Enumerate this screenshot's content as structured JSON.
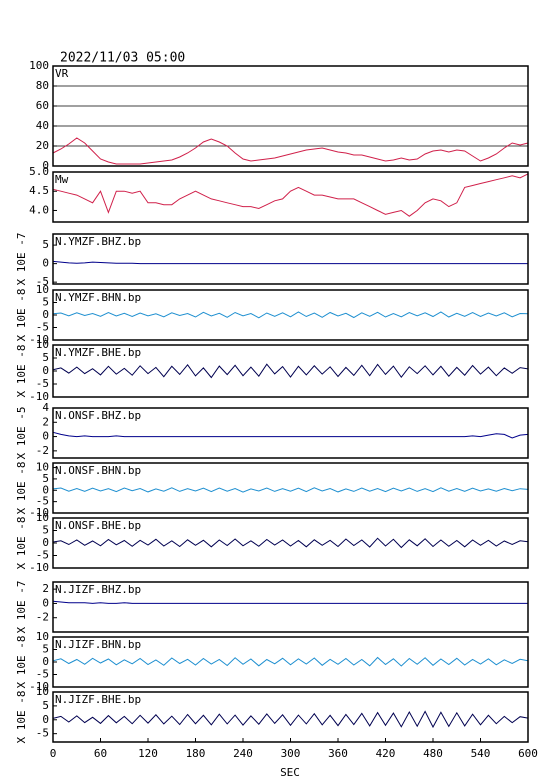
{
  "chart_data": {
    "type": "line",
    "title": "2022/11/03 05:00",
    "xlabel": "SEC",
    "xlim": [
      0,
      600
    ],
    "xticks": [
      0,
      60,
      120,
      180,
      240,
      300,
      360,
      420,
      480,
      540,
      600
    ],
    "x": [
      0,
      10,
      20,
      30,
      40,
      50,
      60,
      70,
      80,
      90,
      100,
      110,
      120,
      130,
      140,
      150,
      160,
      170,
      180,
      190,
      200,
      210,
      220,
      230,
      240,
      250,
      260,
      270,
      280,
      290,
      300,
      310,
      320,
      330,
      340,
      350,
      360,
      370,
      380,
      390,
      400,
      410,
      420,
      430,
      440,
      450,
      460,
      470,
      480,
      490,
      500,
      510,
      520,
      530,
      540,
      550,
      560,
      570,
      580,
      590,
      600
    ],
    "panels": [
      {
        "name": "VR",
        "color": "#d0204a",
        "grid": true,
        "ylim": [
          0,
          100
        ],
        "yticks": [
          0,
          20,
          40,
          60,
          80,
          100
        ],
        "values": [
          13,
          17,
          22,
          28,
          23,
          15,
          7,
          4,
          2,
          2,
          2,
          2,
          3,
          4,
          5,
          6,
          9,
          13,
          18,
          24,
          27,
          24,
          20,
          13,
          7,
          5,
          6,
          7,
          8,
          10,
          12,
          14,
          16,
          17,
          18,
          16,
          14,
          13,
          11,
          11,
          9,
          7,
          5,
          6,
          8,
          6,
          7,
          12,
          15,
          16,
          14,
          16,
          15,
          10,
          5,
          8,
          12,
          18,
          23,
          21,
          23
        ]
      },
      {
        "name": "Mw",
        "color": "#d0204a",
        "ylim": [
          3.7,
          5.0
        ],
        "yticks": [
          {
            "value": 4.0,
            "label": "4.0"
          },
          4.5,
          {
            "value": 5.0,
            "label": "5.0"
          }
        ],
        "values": [
          4.55,
          4.5,
          4.45,
          4.4,
          4.3,
          4.2,
          4.5,
          3.95,
          4.5,
          4.5,
          4.45,
          4.5,
          4.2,
          4.2,
          4.15,
          4.15,
          4.3,
          4.4,
          4.5,
          4.4,
          4.3,
          4.25,
          4.2,
          4.15,
          4.1,
          4.1,
          4.05,
          4.15,
          4.25,
          4.3,
          4.5,
          4.6,
          4.5,
          4.4,
          4.4,
          4.35,
          4.3,
          4.3,
          4.3,
          4.2,
          4.1,
          4.0,
          3.9,
          3.95,
          4.0,
          3.85,
          4.0,
          4.2,
          4.3,
          4.25,
          4.1,
          4.2,
          4.6,
          4.65,
          4.7,
          4.75,
          4.8,
          4.85,
          4.9,
          4.85,
          4.95
        ]
      },
      {
        "name": "N.YMZF.BHZ.bp",
        "ylabel": "X 10E -7",
        "color": "#00008b",
        "ylim": [
          -5.5,
          8
        ],
        "yticks": [
          -5,
          0,
          5
        ],
        "values": [
          0.6,
          0.4,
          0.2,
          0.1,
          0.2,
          0.4,
          0.3,
          0.2,
          0.1,
          0.1,
          0.1,
          0,
          0,
          0,
          0,
          0,
          0,
          0,
          0,
          0,
          0,
          0,
          0,
          0,
          0,
          0,
          0,
          0,
          0,
          0,
          0,
          0,
          0,
          0,
          0,
          0,
          0,
          0,
          0,
          0,
          0,
          0,
          0,
          0,
          0,
          0,
          0,
          0,
          0,
          0,
          0,
          0,
          0,
          0,
          0,
          0,
          0,
          0,
          0,
          0,
          0
        ]
      },
      {
        "name": "N.YMZF.BHN.bp",
        "ylabel": "X 10E -8",
        "color": "#1e8fd0",
        "ylim": [
          -10,
          10
        ],
        "yticks": [
          -10,
          -5,
          0,
          5,
          10
        ],
        "values": [
          0.5,
          0.8,
          -0.3,
          0.9,
          -0.2,
          0.6,
          -0.5,
          1.0,
          -0.4,
          0.7,
          -0.6,
          0.8,
          -0.3,
          0.5,
          -0.7,
          0.9,
          -0.2,
          0.6,
          -0.8,
          1.1,
          -0.4,
          0.7,
          -0.9,
          1.0,
          -0.3,
          0.6,
          -1.1,
          0.8,
          -0.5,
          0.9,
          -0.7,
          1.2,
          -0.6,
          0.8,
          -0.9,
          1.0,
          -0.4,
          0.7,
          -1.0,
          0.9,
          -0.5,
          1.1,
          -0.8,
          0.6,
          -0.7,
          1.0,
          -0.3,
          0.9,
          -0.6,
          1.2,
          -0.8,
          0.7,
          -0.5,
          1.0,
          -0.6,
          0.8,
          -0.4,
          0.9,
          -0.7,
          0.6,
          0.5
        ]
      },
      {
        "name": "N.YMZF.BHE.bp",
        "ylabel": "X 10E -8",
        "color": "#000050",
        "ylim": [
          -10,
          10
        ],
        "yticks": [
          -10,
          -5,
          0,
          5,
          10
        ],
        "values": [
          0.5,
          1.2,
          -0.8,
          1.5,
          -1.0,
          0.9,
          -1.5,
          1.8,
          -1.2,
          1.0,
          -1.6,
          2.0,
          -1.0,
          1.4,
          -2.2,
          1.8,
          -1.3,
          2.4,
          -1.9,
          1.2,
          -2.5,
          1.9,
          -1.4,
          2.2,
          -1.8,
          1.5,
          -2.0,
          2.6,
          -1.1,
          1.7,
          -2.3,
          1.8,
          -1.5,
          2.0,
          -1.2,
          1.6,
          -2.1,
          1.4,
          -1.7,
          2.2,
          -1.8,
          2.5,
          -1.3,
          1.9,
          -2.4,
          1.6,
          -1.0,
          2.0,
          -1.5,
          1.8,
          -2.0,
          1.4,
          -1.6,
          2.1,
          -1.2,
          1.5,
          -1.8,
          1.2,
          -0.9,
          1.3,
          0.8
        ]
      },
      {
        "name": "N.ONSF.BHZ.bp",
        "ylabel": "X 10E -5",
        "color": "#00008b",
        "ylim": [
          -3,
          4
        ],
        "yticks": [
          -2,
          0,
          2,
          4
        ],
        "values": [
          0.6,
          0.3,
          0.1,
          0,
          0.1,
          0,
          0,
          0,
          0.1,
          0,
          0,
          0,
          0,
          0,
          0,
          0,
          0,
          0,
          0,
          0,
          0,
          0,
          0,
          0,
          0,
          0,
          0,
          0,
          0,
          0,
          0,
          0,
          0,
          0,
          0,
          0,
          0,
          0,
          0,
          0,
          0,
          0,
          0,
          0,
          0,
          0,
          0,
          0,
          0,
          0,
          0,
          0,
          0,
          0.1,
          0,
          0.2,
          0.4,
          0.3,
          -0.2,
          0.2,
          0.3
        ]
      },
      {
        "name": "N.ONSF.BHN.bp",
        "ylabel": "X 10E -8",
        "color": "#1e8fd0",
        "ylim": [
          -10,
          12
        ],
        "yticks": [
          -10,
          -5,
          0,
          5,
          10
        ],
        "values": [
          0.6,
          1.0,
          -0.4,
          0.8,
          -0.5,
          0.9,
          -0.3,
          0.7,
          -0.6,
          1.0,
          -0.2,
          0.8,
          -0.7,
          0.6,
          -0.4,
          1.1,
          -0.5,
          0.7,
          -0.3,
          0.9,
          -0.6,
          1.0,
          -0.4,
          0.8,
          -0.8,
          0.6,
          -0.3,
          1.0,
          -0.5,
          0.7,
          -0.4,
          0.9,
          -0.6,
          1.1,
          -0.3,
          0.8,
          -0.7,
          0.6,
          -0.5,
          1.0,
          -0.4,
          0.8,
          -0.6,
          0.9,
          -0.3,
          1.0,
          -0.5,
          0.7,
          -0.6,
          1.1,
          -0.4,
          0.8,
          -0.5,
          0.9,
          -0.3,
          0.6,
          -0.4,
          0.8,
          -0.2,
          0.7,
          0.4
        ]
      },
      {
        "name": "N.ONSF.BHE.bp",
        "ylabel": "X 10E -8",
        "color": "#000050",
        "ylim": [
          -10,
          10
        ],
        "yticks": [
          -10,
          -5,
          0,
          5,
          10
        ],
        "values": [
          0.4,
          0.9,
          -0.6,
          1.2,
          -0.9,
          0.8,
          -1.1,
          1.4,
          -0.7,
          1.0,
          -1.3,
          1.1,
          -0.8,
          1.5,
          -1.2,
          0.9,
          -1.4,
          1.3,
          -0.9,
          1.1,
          -1.5,
          1.2,
          -1.0,
          1.6,
          -1.1,
          0.9,
          -1.3,
          1.4,
          -0.8,
          1.2,
          -1.2,
          1.0,
          -1.5,
          1.3,
          -0.9,
          1.1,
          -1.4,
          1.6,
          -1.0,
          1.2,
          -1.6,
          1.9,
          -1.2,
          1.5,
          -1.8,
          1.3,
          -1.1,
          1.7,
          -1.4,
          1.2,
          -1.3,
          1.0,
          -1.5,
          1.2,
          -0.9,
          1.1,
          -1.2,
          0.8,
          -0.6,
          0.9,
          0.5
        ]
      },
      {
        "name": "N.JIZF.BHZ.bp",
        "ylabel": "X 10E -7",
        "color": "#00008b",
        "ylim": [
          -4,
          3
        ],
        "yticks": [
          -2,
          0,
          2
        ],
        "values": [
          0.3,
          0.2,
          0.1,
          0.1,
          0.1,
          0,
          0.1,
          0,
          0,
          0.1,
          0,
          0,
          0,
          0,
          0,
          0,
          0,
          0,
          0,
          0,
          0,
          0,
          0,
          0,
          0,
          0,
          0,
          0,
          0,
          0,
          0,
          0,
          0,
          0,
          0,
          0,
          0,
          0,
          0,
          0,
          0,
          0,
          0,
          0,
          0,
          0,
          0,
          0,
          0,
          0,
          0,
          0,
          0,
          0,
          0,
          0,
          0,
          0,
          0,
          0,
          0
        ]
      },
      {
        "name": "N.JIZF.BHN.bp",
        "ylabel": "X 10E -8",
        "color": "#1e8fd0",
        "ylim": [
          -10,
          10
        ],
        "yticks": [
          -10,
          -5,
          0,
          5,
          10
        ],
        "values": [
          0.5,
          1.3,
          -0.6,
          1.0,
          -0.9,
          1.5,
          -0.4,
          1.2,
          -1.1,
          0.9,
          -0.7,
          1.4,
          -1.0,
          0.8,
          -1.3,
          1.6,
          -0.6,
          1.1,
          -1.2,
          1.4,
          -0.8,
          1.0,
          -1.4,
          1.7,
          -0.9,
          1.2,
          -1.5,
          1.0,
          -0.7,
          1.5,
          -1.1,
          1.3,
          -0.8,
          1.6,
          -1.3,
          1.1,
          -0.9,
          1.4,
          -1.2,
          1.0,
          -1.5,
          1.8,
          -1.0,
          1.3,
          -1.6,
          1.4,
          -0.9,
          1.7,
          -1.3,
          1.2,
          -1.0,
          1.5,
          -1.2,
          1.0,
          -0.8,
          1.3,
          -1.1,
          0.9,
          -0.6,
          1.1,
          0.5
        ]
      },
      {
        "name": "N.JIZF.BHE.bp",
        "ylabel": "X 10E -8",
        "color": "#000050",
        "ylim": [
          -8,
          10
        ],
        "yticks": [
          -5,
          0,
          5,
          10
        ],
        "values": [
          0.5,
          1.2,
          -0.8,
          1.4,
          -1.0,
          0.9,
          -1.3,
          1.5,
          -1.1,
          1.2,
          -1.4,
          1.6,
          -1.2,
          1.8,
          -1.5,
          1.3,
          -1.7,
          1.9,
          -1.4,
          1.6,
          -1.8,
          2.0,
          -1.5,
          1.7,
          -1.9,
          1.4,
          -1.6,
          2.1,
          -1.3,
          1.8,
          -2.0,
          1.7,
          -1.5,
          2.2,
          -1.8,
          1.6,
          -2.1,
          1.9,
          -1.7,
          2.3,
          -2.2,
          2.6,
          -2.0,
          2.4,
          -2.5,
          2.8,
          -2.3,
          3.0,
          -2.6,
          2.7,
          -2.4,
          2.5,
          -2.2,
          2.0,
          -1.8,
          1.6,
          -1.4,
          1.2,
          -1.0,
          1.1,
          0.6
        ]
      }
    ]
  }
}
